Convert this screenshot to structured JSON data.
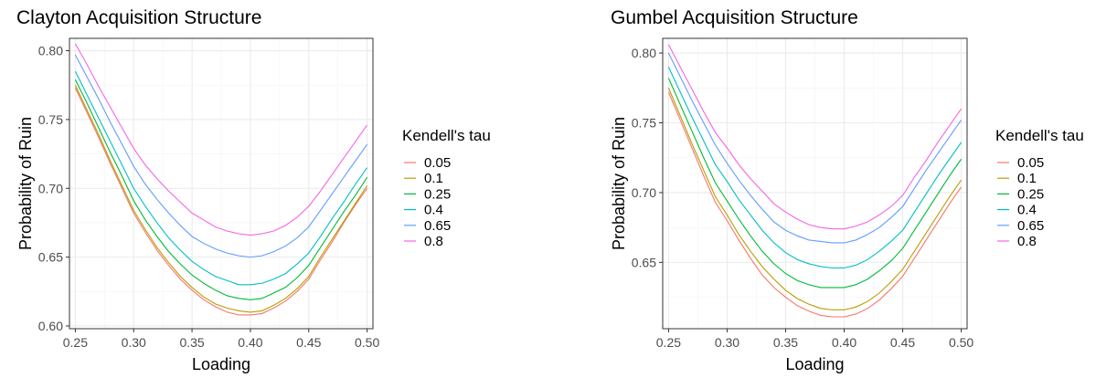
{
  "chart_data": [
    {
      "type": "line",
      "title": "Clayton Acquisition Structure",
      "xlabel": "Loading",
      "ylabel": "Probability of Ruin",
      "xlim": [
        0.245,
        0.505
      ],
      "ylim": [
        0.598,
        0.809
      ],
      "xticks": [
        "0.25",
        "0.30",
        "0.35",
        "0.40",
        "0.45",
        "0.50"
      ],
      "yticks": [
        "0.60",
        "0.65",
        "0.70",
        "0.75",
        "0.80"
      ],
      "grid": true,
      "legend_title": "Kendell's tau",
      "legend_position": "right",
      "x": [
        0.25,
        0.26,
        0.27,
        0.28,
        0.29,
        0.3,
        0.31,
        0.32,
        0.33,
        0.34,
        0.35,
        0.36,
        0.37,
        0.38,
        0.39,
        0.4,
        0.41,
        0.42,
        0.43,
        0.44,
        0.45,
        0.46,
        0.47,
        0.48,
        0.49,
        0.5
      ],
      "series": [
        {
          "name": "0.05",
          "color": "#F8766D",
          "values": [
            0.773,
            0.755,
            0.737,
            0.718,
            0.7,
            0.682,
            0.668,
            0.655,
            0.644,
            0.634,
            0.626,
            0.619,
            0.614,
            0.61,
            0.608,
            0.608,
            0.609,
            0.613,
            0.618,
            0.625,
            0.634,
            0.648,
            0.661,
            0.675,
            0.688,
            0.7
          ]
        },
        {
          "name": "0.1",
          "color": "#B79F00",
          "values": [
            0.775,
            0.757,
            0.739,
            0.72,
            0.702,
            0.684,
            0.67,
            0.657,
            0.646,
            0.636,
            0.628,
            0.621,
            0.616,
            0.613,
            0.611,
            0.61,
            0.611,
            0.615,
            0.62,
            0.627,
            0.636,
            0.65,
            0.663,
            0.676,
            0.689,
            0.702
          ]
        },
        {
          "name": "0.25",
          "color": "#00BA38",
          "values": [
            0.779,
            0.762,
            0.744,
            0.726,
            0.709,
            0.691,
            0.677,
            0.665,
            0.654,
            0.645,
            0.637,
            0.631,
            0.626,
            0.622,
            0.62,
            0.619,
            0.62,
            0.624,
            0.628,
            0.635,
            0.644,
            0.657,
            0.67,
            0.683,
            0.695,
            0.708
          ]
        },
        {
          "name": "0.4",
          "color": "#00BFC4",
          "values": [
            0.785,
            0.768,
            0.751,
            0.734,
            0.717,
            0.7,
            0.687,
            0.675,
            0.664,
            0.655,
            0.647,
            0.641,
            0.636,
            0.633,
            0.63,
            0.63,
            0.631,
            0.634,
            0.638,
            0.645,
            0.653,
            0.665,
            0.678,
            0.69,
            0.703,
            0.715
          ]
        },
        {
          "name": "0.65",
          "color": "#619CFF",
          "values": [
            0.797,
            0.781,
            0.765,
            0.748,
            0.732,
            0.716,
            0.703,
            0.692,
            0.682,
            0.673,
            0.665,
            0.66,
            0.656,
            0.653,
            0.651,
            0.65,
            0.651,
            0.654,
            0.658,
            0.664,
            0.672,
            0.684,
            0.696,
            0.708,
            0.72,
            0.732
          ]
        },
        {
          "name": "0.8",
          "color": "#F564E3",
          "values": [
            0.805,
            0.79,
            0.774,
            0.759,
            0.744,
            0.729,
            0.717,
            0.707,
            0.698,
            0.69,
            0.682,
            0.677,
            0.672,
            0.669,
            0.667,
            0.666,
            0.667,
            0.669,
            0.673,
            0.679,
            0.687,
            0.698,
            0.71,
            0.722,
            0.734,
            0.746
          ]
        }
      ]
    },
    {
      "type": "line",
      "title": "Gumbel Acquisition Structure",
      "xlabel": "Loading",
      "ylabel": "Probability of Ruin",
      "xlim": [
        0.245,
        0.505
      ],
      "ylim": [
        0.6025,
        0.8105
      ],
      "xticks": [
        "0.25",
        "0.30",
        "0.35",
        "0.40",
        "0.45",
        "0.50"
      ],
      "yticks": [
        "0.65",
        "0.70",
        "0.75",
        "0.80"
      ],
      "grid": true,
      "legend_title": "Kendell's tau",
      "legend_position": "right",
      "x": [
        0.25,
        0.26,
        0.27,
        0.28,
        0.29,
        0.3,
        0.31,
        0.32,
        0.33,
        0.34,
        0.35,
        0.36,
        0.37,
        0.38,
        0.39,
        0.4,
        0.41,
        0.42,
        0.43,
        0.44,
        0.45,
        0.46,
        0.47,
        0.48,
        0.49,
        0.5
      ],
      "series": [
        {
          "name": "0.05",
          "color": "#F8766D",
          "values": [
            0.772,
            0.752,
            0.732,
            0.712,
            0.693,
            0.68,
            0.666,
            0.653,
            0.641,
            0.632,
            0.625,
            0.619,
            0.615,
            0.612,
            0.611,
            0.611,
            0.613,
            0.617,
            0.623,
            0.631,
            0.64,
            0.653,
            0.666,
            0.679,
            0.692,
            0.704
          ]
        },
        {
          "name": "0.1",
          "color": "#B79F00",
          "values": [
            0.775,
            0.755,
            0.735,
            0.716,
            0.697,
            0.684,
            0.67,
            0.658,
            0.647,
            0.638,
            0.63,
            0.624,
            0.62,
            0.617,
            0.616,
            0.616,
            0.618,
            0.622,
            0.628,
            0.636,
            0.645,
            0.658,
            0.671,
            0.684,
            0.697,
            0.709
          ]
        },
        {
          "name": "0.25",
          "color": "#00BA38",
          "values": [
            0.782,
            0.763,
            0.744,
            0.725,
            0.707,
            0.694,
            0.681,
            0.669,
            0.658,
            0.649,
            0.642,
            0.637,
            0.634,
            0.632,
            0.632,
            0.632,
            0.634,
            0.638,
            0.644,
            0.651,
            0.66,
            0.673,
            0.686,
            0.699,
            0.712,
            0.724
          ]
        },
        {
          "name": "0.4",
          "color": "#00BFC4",
          "values": [
            0.79,
            0.772,
            0.754,
            0.737,
            0.72,
            0.708,
            0.695,
            0.684,
            0.673,
            0.664,
            0.657,
            0.652,
            0.649,
            0.647,
            0.646,
            0.646,
            0.648,
            0.652,
            0.658,
            0.665,
            0.673,
            0.686,
            0.699,
            0.712,
            0.724,
            0.736
          ]
        },
        {
          "name": "0.65",
          "color": "#619CFF",
          "values": [
            0.8,
            0.783,
            0.766,
            0.75,
            0.734,
            0.721,
            0.709,
            0.698,
            0.688,
            0.679,
            0.673,
            0.669,
            0.666,
            0.665,
            0.664,
            0.664,
            0.666,
            0.67,
            0.675,
            0.682,
            0.69,
            0.703,
            0.716,
            0.728,
            0.74,
            0.752
          ]
        },
        {
          "name": "0.8",
          "color": "#F564E3",
          "values": [
            0.806,
            0.79,
            0.774,
            0.758,
            0.743,
            0.732,
            0.72,
            0.71,
            0.701,
            0.692,
            0.686,
            0.681,
            0.677,
            0.675,
            0.674,
            0.674,
            0.676,
            0.679,
            0.684,
            0.69,
            0.698,
            0.711,
            0.723,
            0.736,
            0.748,
            0.76
          ]
        }
      ]
    }
  ]
}
